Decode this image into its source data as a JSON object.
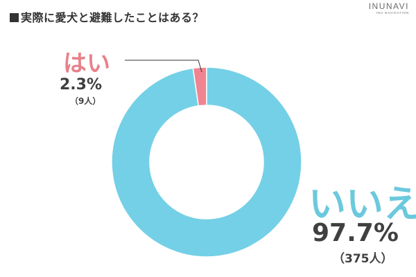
{
  "header": {
    "title": "実際に愛犬と避難したことはある？",
    "logo_main": "INUNAVI",
    "logo_sub": "INU NAVIGATION"
  },
  "chart_data": {
    "type": "pie",
    "donut": true,
    "title": "実際に愛犬と避難したことはある？",
    "slices": [
      {
        "label": "はい",
        "percent_label": "2.3%",
        "count_label": "（9人）",
        "value": 2.3,
        "count": 9,
        "color": "#f08490"
      },
      {
        "label": "いいえ",
        "percent_label": "97.7%",
        "count_label": "（375人）",
        "value": 97.7,
        "count": 375,
        "color": "#74d0e6"
      }
    ]
  }
}
